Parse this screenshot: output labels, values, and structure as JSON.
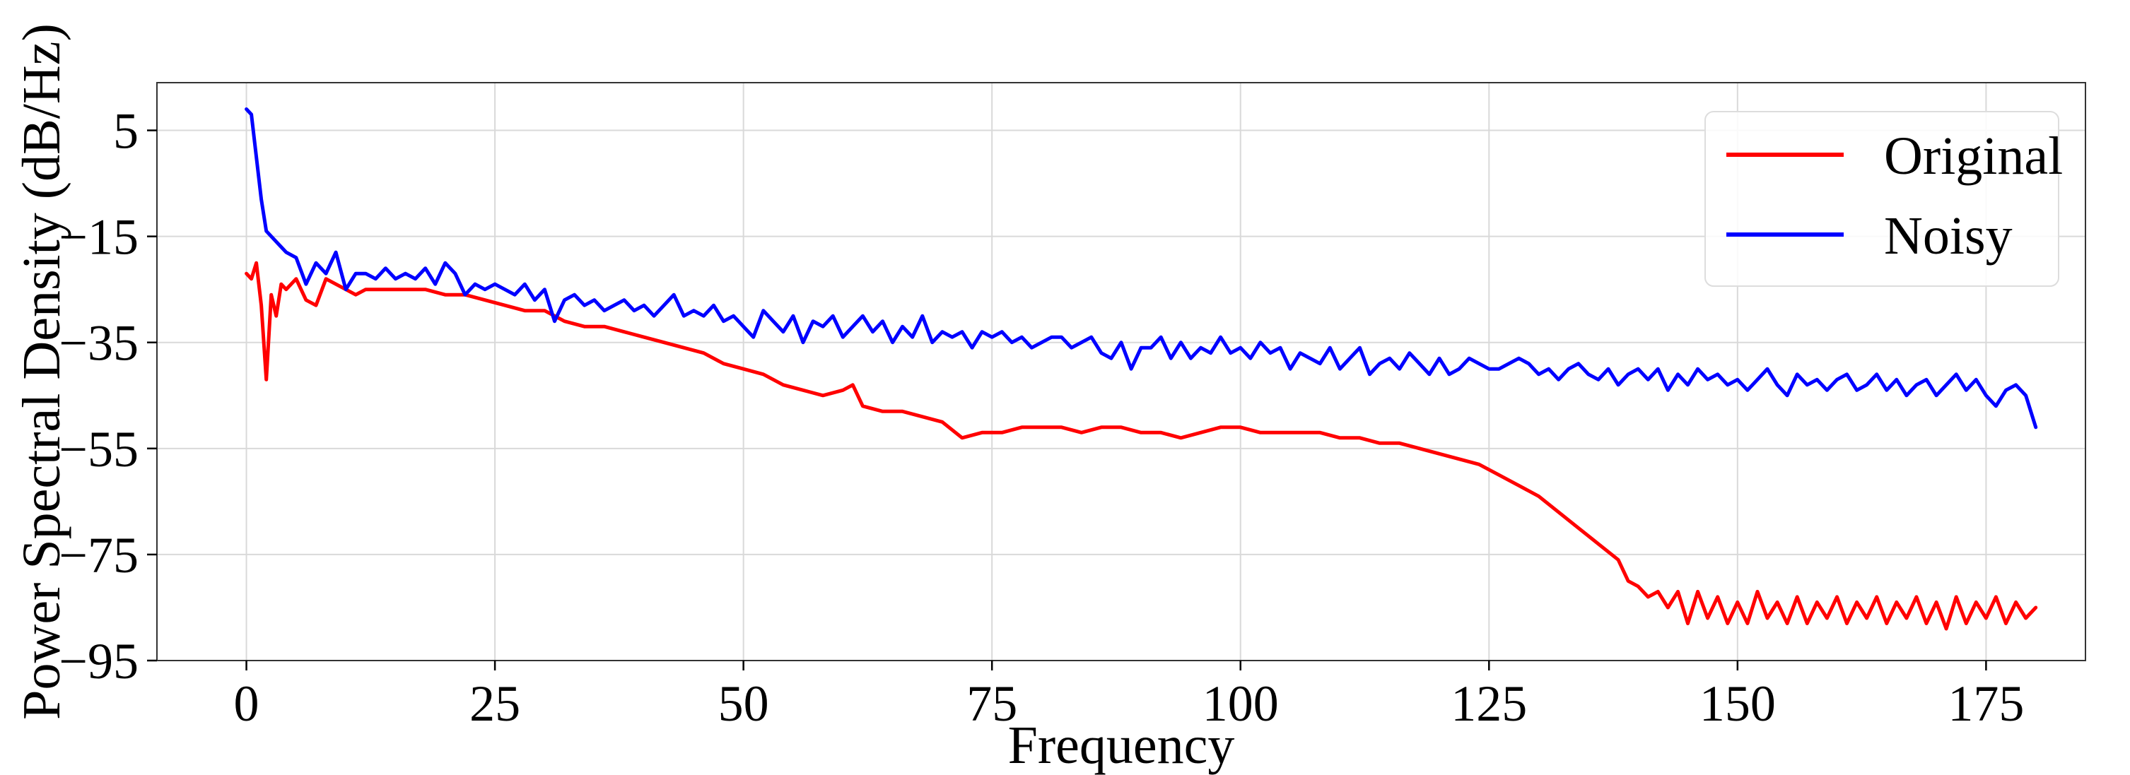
{
  "chart_data": {
    "type": "line",
    "title": "",
    "xlabel": "Frequency",
    "ylabel": "Power Spectral Density (dB/Hz)",
    "xlim": [
      -9,
      185
    ],
    "ylim": [
      -95,
      14
    ],
    "x_ticks": [
      0,
      25,
      50,
      75,
      100,
      125,
      150,
      175
    ],
    "y_ticks": [
      5,
      -15,
      -35,
      -55,
      -75,
      -95
    ],
    "x_tick_labels": [
      "0",
      "25",
      "50",
      "75",
      "100",
      "125",
      "150",
      "175"
    ],
    "y_tick_labels": [
      "5",
      "−15",
      "−35",
      "−55",
      "−75",
      "−95"
    ],
    "grid": true,
    "legend_position": "top-right",
    "series": [
      {
        "name": "Original",
        "color": "#ff0000",
        "x": [
          0,
          0.5,
          1,
          1.5,
          2,
          2.5,
          3,
          3.5,
          4,
          5,
          6,
          7,
          8,
          9,
          10,
          11,
          12,
          14,
          16,
          18,
          20,
          22,
          24,
          26,
          28,
          30,
          32,
          34,
          36,
          38,
          40,
          42,
          44,
          46,
          48,
          50,
          52,
          54,
          56,
          58,
          60,
          61,
          62,
          64,
          66,
          68,
          70,
          72,
          74,
          76,
          78,
          80,
          82,
          84,
          86,
          88,
          90,
          92,
          94,
          96,
          98,
          100,
          102,
          104,
          106,
          108,
          110,
          112,
          114,
          116,
          118,
          120,
          122,
          124,
          126,
          128,
          130,
          132,
          134,
          136,
          138,
          139,
          140,
          141,
          142,
          143,
          144,
          145,
          146,
          147,
          148,
          149,
          150,
          151,
          152,
          153,
          154,
          155,
          156,
          157,
          158,
          159,
          160,
          161,
          162,
          163,
          164,
          165,
          166,
          167,
          168,
          169,
          170,
          171,
          172,
          173,
          174,
          175,
          176,
          177,
          178,
          179,
          180
        ],
        "y": [
          -22,
          -23,
          -20,
          -28,
          -42,
          -26,
          -30,
          -24,
          -25,
          -23,
          -27,
          -28,
          -23,
          -24,
          -25,
          -26,
          -25,
          -25,
          -25,
          -25,
          -26,
          -26,
          -27,
          -28,
          -29,
          -29,
          -31,
          -32,
          -32,
          -33,
          -34,
          -35,
          -36,
          -37,
          -39,
          -40,
          -41,
          -43,
          -44,
          -45,
          -44,
          -43,
          -47,
          -48,
          -48,
          -49,
          -50,
          -53,
          -52,
          -52,
          -51,
          -51,
          -51,
          -52,
          -51,
          -51,
          -52,
          -52,
          -53,
          -52,
          -51,
          -51,
          -52,
          -52,
          -52,
          -52,
          -53,
          -53,
          -54,
          -54,
          -55,
          -56,
          -57,
          -58,
          -60,
          -62,
          -64,
          -67,
          -70,
          -73,
          -76,
          -80,
          -81,
          -83,
          -82,
          -85,
          -82,
          -88,
          -82,
          -87,
          -83,
          -88,
          -84,
          -88,
          -82,
          -87,
          -84,
          -88,
          -83,
          -88,
          -84,
          -87,
          -83,
          -88,
          -84,
          -87,
          -83,
          -88,
          -84,
          -87,
          -83,
          -88,
          -84,
          -89,
          -83,
          -88,
          -84,
          -87,
          -83,
          -88,
          -84,
          -87,
          -85
        ]
      },
      {
        "name": "Noisy",
        "color": "#0000ff",
        "x": [
          0,
          0.5,
          1,
          1.5,
          2,
          2.5,
          3,
          3.5,
          4,
          5,
          6,
          7,
          8,
          9,
          10,
          11,
          12,
          13,
          14,
          15,
          16,
          17,
          18,
          19,
          20,
          21,
          22,
          23,
          24,
          25,
          26,
          27,
          28,
          29,
          30,
          31,
          32,
          33,
          34,
          35,
          36,
          37,
          38,
          39,
          40,
          41,
          42,
          43,
          44,
          45,
          46,
          47,
          48,
          49,
          50,
          51,
          52,
          53,
          54,
          55,
          56,
          57,
          58,
          59,
          60,
          61,
          62,
          63,
          64,
          65,
          66,
          67,
          68,
          69,
          70,
          71,
          72,
          73,
          74,
          75,
          76,
          77,
          78,
          79,
          80,
          81,
          82,
          83,
          84,
          85,
          86,
          87,
          88,
          89,
          90,
          91,
          92,
          93,
          94,
          95,
          96,
          97,
          98,
          99,
          100,
          101,
          102,
          103,
          104,
          105,
          106,
          107,
          108,
          109,
          110,
          111,
          112,
          113,
          114,
          115,
          116,
          117,
          118,
          119,
          120,
          121,
          122,
          123,
          124,
          125,
          126,
          127,
          128,
          129,
          130,
          131,
          132,
          133,
          134,
          135,
          136,
          137,
          138,
          139,
          140,
          141,
          142,
          143,
          144,
          145,
          146,
          147,
          148,
          149,
          150,
          151,
          152,
          153,
          154,
          155,
          156,
          157,
          158,
          159,
          160,
          161,
          162,
          163,
          164,
          165,
          166,
          167,
          168,
          169,
          170,
          171,
          172,
          173,
          174,
          175,
          176,
          177,
          178,
          179,
          180
        ],
        "y": [
          9,
          8,
          0,
          -8,
          -14,
          -15,
          -16,
          -17,
          -18,
          -19,
          -24,
          -20,
          -22,
          -18,
          -25,
          -22,
          -22,
          -23,
          -21,
          -23,
          -22,
          -23,
          -21,
          -24,
          -20,
          -22,
          -26,
          -24,
          -25,
          -24,
          -25,
          -26,
          -24,
          -27,
          -25,
          -31,
          -27,
          -26,
          -28,
          -27,
          -29,
          -28,
          -27,
          -29,
          -28,
          -30,
          -28,
          -26,
          -30,
          -29,
          -30,
          -28,
          -31,
          -30,
          -32,
          -34,
          -29,
          -31,
          -33,
          -30,
          -35,
          -31,
          -32,
          -30,
          -34,
          -32,
          -30,
          -33,
          -31,
          -35,
          -32,
          -34,
          -30,
          -35,
          -33,
          -34,
          -33,
          -36,
          -33,
          -34,
          -33,
          -35,
          -34,
          -36,
          -35,
          -34,
          -34,
          -36,
          -35,
          -34,
          -37,
          -38,
          -35,
          -40,
          -36,
          -36,
          -34,
          -38,
          -35,
          -38,
          -36,
          -37,
          -34,
          -37,
          -36,
          -38,
          -35,
          -37,
          -36,
          -40,
          -37,
          -38,
          -39,
          -36,
          -40,
          -38,
          -36,
          -41,
          -39,
          -38,
          -40,
          -37,
          -39,
          -41,
          -38,
          -41,
          -40,
          -38,
          -39,
          -40,
          -40,
          -39,
          -38,
          -39,
          -41,
          -40,
          -42,
          -40,
          -39,
          -41,
          -42,
          -40,
          -43,
          -41,
          -40,
          -42,
          -40,
          -44,
          -41,
          -43,
          -40,
          -42,
          -41,
          -43,
          -42,
          -44,
          -42,
          -40,
          -43,
          -45,
          -41,
          -43,
          -42,
          -44,
          -42,
          -41,
          -44,
          -43,
          -41,
          -44,
          -42,
          -45,
          -43,
          -42,
          -45,
          -43,
          -41,
          -44,
          -42,
          -45,
          -47,
          -44,
          -43,
          -45,
          -51
        ]
      }
    ]
  }
}
